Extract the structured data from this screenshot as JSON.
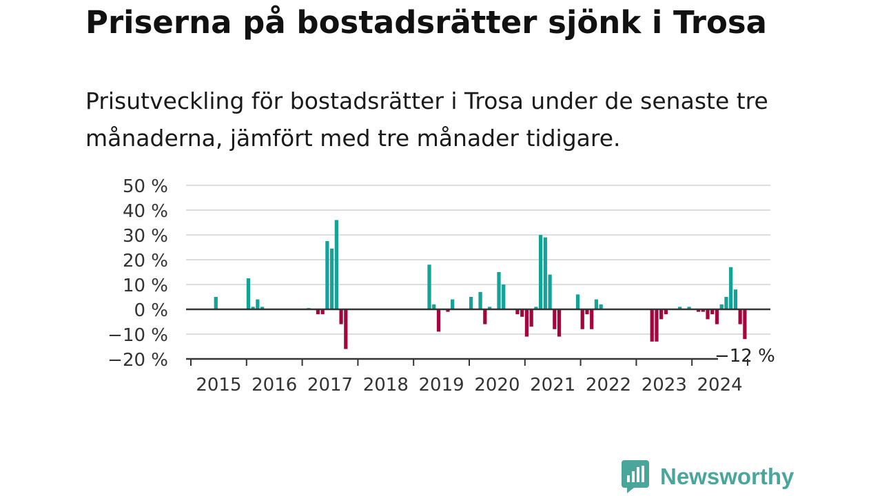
{
  "title": "Priserna på bostadsrätter sjönk i Trosa",
  "subtitle": "Prisutveckling för bostadsrätter i Trosa under de senaste tre månaderna, jämfört med tre månader tidigare.",
  "brand": {
    "name": "Newsworthy",
    "icon": "newsworthy-logo-icon"
  },
  "colors": {
    "positive": "#14a398",
    "negative": "#a3063d",
    "grid": "#dddddd",
    "axis": "#333333",
    "brand": "#4aa59a"
  },
  "chart_data": {
    "type": "bar",
    "y_ticks": [
      {
        "value": 50,
        "label": "50 %"
      },
      {
        "value": 40,
        "label": "40 %"
      },
      {
        "value": 30,
        "label": "30 %"
      },
      {
        "value": 20,
        "label": "20 %"
      },
      {
        "value": 10,
        "label": "10 %"
      },
      {
        "value": 0,
        "label": "0 %"
      },
      {
        "value": -10,
        "label": "−10 %"
      },
      {
        "value": -20,
        "label": "−20 %"
      }
    ],
    "ylim": [
      -20,
      50
    ],
    "x_ticks": [
      "2015",
      "2016",
      "2017",
      "2018",
      "2019",
      "2020",
      "2021",
      "2022",
      "2023",
      "2024"
    ],
    "xlim": [
      "2015-01",
      "2025-07"
    ],
    "grid": true,
    "last_value_label": "−12 %",
    "values_by_month": [
      {
        "month": "2015-06",
        "value": 5
      },
      {
        "month": "2016-01",
        "value": 12.5
      },
      {
        "month": "2016-02",
        "value": 1
      },
      {
        "month": "2016-03",
        "value": 4
      },
      {
        "month": "2016-04",
        "value": 1
      },
      {
        "month": "2017-02",
        "value": 0.5
      },
      {
        "month": "2017-04",
        "value": -2
      },
      {
        "month": "2017-05",
        "value": -2
      },
      {
        "month": "2017-06",
        "value": 27.5
      },
      {
        "month": "2017-07",
        "value": 24.5
      },
      {
        "month": "2017-08",
        "value": 36
      },
      {
        "month": "2017-09",
        "value": -6
      },
      {
        "month": "2017-10",
        "value": -16
      },
      {
        "month": "2019-04",
        "value": 18
      },
      {
        "month": "2019-05",
        "value": 2
      },
      {
        "month": "2019-06",
        "value": -9
      },
      {
        "month": "2019-08",
        "value": -1
      },
      {
        "month": "2019-09",
        "value": 4
      },
      {
        "month": "2020-01",
        "value": 5
      },
      {
        "month": "2020-03",
        "value": 7
      },
      {
        "month": "2020-04",
        "value": -6
      },
      {
        "month": "2020-05",
        "value": 1
      },
      {
        "month": "2020-07",
        "value": 15
      },
      {
        "month": "2020-08",
        "value": 10
      },
      {
        "month": "2020-11",
        "value": -2
      },
      {
        "month": "2020-12",
        "value": -3
      },
      {
        "month": "2021-01",
        "value": -11
      },
      {
        "month": "2021-02",
        "value": -7
      },
      {
        "month": "2021-03",
        "value": 1
      },
      {
        "month": "2021-04",
        "value": 30
      },
      {
        "month": "2021-05",
        "value": 29
      },
      {
        "month": "2021-06",
        "value": 14
      },
      {
        "month": "2021-07",
        "value": -8
      },
      {
        "month": "2021-08",
        "value": -11
      },
      {
        "month": "2021-12",
        "value": 6
      },
      {
        "month": "2022-01",
        "value": -8
      },
      {
        "month": "2022-02",
        "value": -2
      },
      {
        "month": "2022-03",
        "value": -8
      },
      {
        "month": "2022-04",
        "value": 4
      },
      {
        "month": "2022-05",
        "value": 2
      },
      {
        "month": "2023-04",
        "value": -13
      },
      {
        "month": "2023-05",
        "value": -13
      },
      {
        "month": "2023-06",
        "value": -4
      },
      {
        "month": "2023-07",
        "value": -2
      },
      {
        "month": "2023-10",
        "value": 1
      },
      {
        "month": "2023-12",
        "value": 1
      },
      {
        "month": "2024-02",
        "value": -1
      },
      {
        "month": "2024-03",
        "value": -1
      },
      {
        "month": "2024-04",
        "value": -4
      },
      {
        "month": "2024-05",
        "value": -2
      },
      {
        "month": "2024-06",
        "value": -6
      },
      {
        "month": "2024-07",
        "value": 2
      },
      {
        "month": "2024-08",
        "value": 5
      },
      {
        "month": "2024-09",
        "value": 17
      },
      {
        "month": "2024-10",
        "value": 8
      },
      {
        "month": "2024-11",
        "value": -6
      },
      {
        "month": "2024-12",
        "value": -12
      }
    ]
  }
}
